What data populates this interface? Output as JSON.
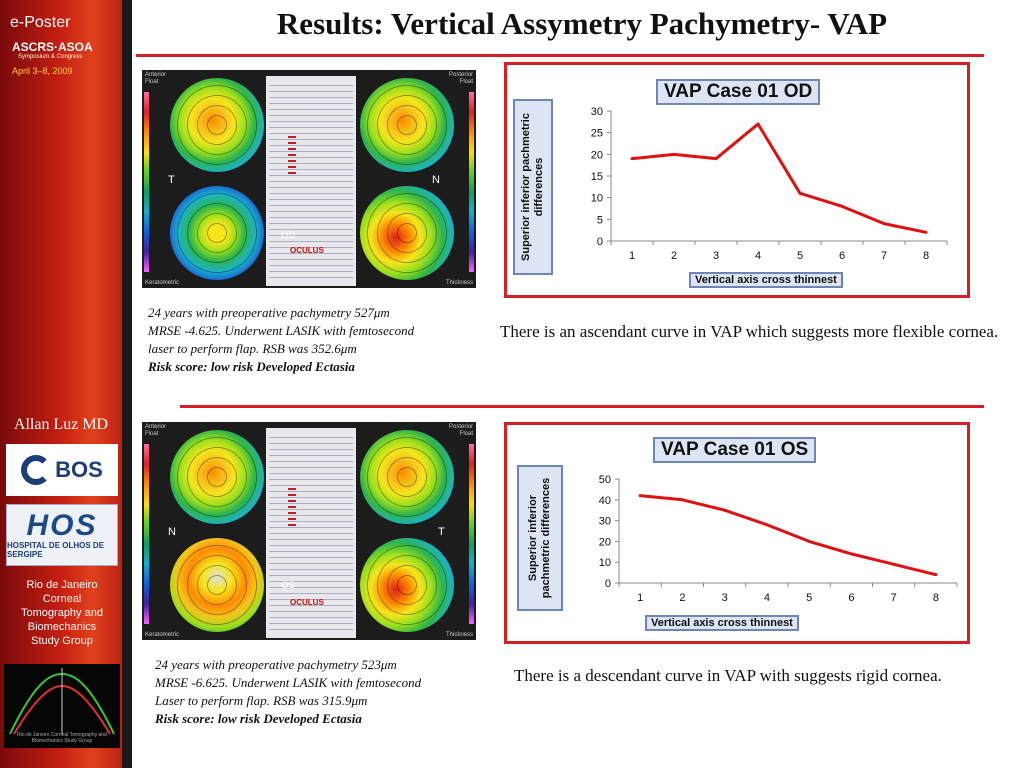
{
  "sidebar": {
    "eposter": "e-Poster",
    "ascrs": "ASCRS·ASOA",
    "ascrs_sub": "Symposium & Congress",
    "date": "April 3–8, 2009",
    "author": "Allan Luz MD",
    "bos_logo": "BOS",
    "hos_logo": "HOS",
    "hos_sub": "HOSPITAL DE OLHOS DE SERGIPE",
    "group_lines": [
      "Rio de Janeiro",
      "Corneal",
      "Tomography and",
      "Biomechanics",
      "Study Group"
    ],
    "group_logo_caption": "Rio de Janeiro Corneal Tomography and Biomechanics Study Group"
  },
  "title": "Results: Vertical Assymetry Pachymetry- VAP",
  "cases": [
    {
      "topo": {
        "anterior": "Anterior",
        "float": "Float",
        "posterior": "Posterior",
        "float_r": "Float",
        "left_dir": "T",
        "right_dir": "N",
        "eye": "OD",
        "keratometric": "Keratometric",
        "thickness": "Thickness",
        "brand": "OCULUS"
      },
      "caption": {
        "line1": "24 years with preoperative pachymetry 527μm",
        "line2": "MRSE -4.625. Underwent LASIK with femtosecond",
        "line3": "laser to perform flap. RSB was 352.6μm",
        "risk": "Risk score: low risk  Developed Ectasia"
      },
      "observation": "There is an ascendant curve in VAP which suggests more flexible cornea."
    },
    {
      "topo": {
        "anterior": "Anterior",
        "float": "Float",
        "posterior": "Posterior",
        "float_r": "Float",
        "left_dir": "N",
        "right_dir": "T",
        "eye": "OS",
        "keratometric": "Keratometric",
        "thickness": "Thickness",
        "brand": "OCULUS"
      },
      "caption": {
        "line1": "24 years with preoperative pachymetry 523μm",
        "line2": "MRSE -6.625. Underwent LASIK with femtosecond",
        "line3": "Laser to perform flap. RSB was 315.9μm",
        "risk": "Risk score: low risk  Developed Ectasia"
      },
      "observation": "There is a descendant curve in VAP with suggests rigid cornea."
    }
  ],
  "colors": {
    "accent_red": "#d42020",
    "line_red": "#e01010",
    "label_fill": "#dde4f3",
    "label_border": "#6e85b8"
  },
  "chart_data": [
    {
      "type": "line",
      "title": "VAP Case 01 OD",
      "xlabel": "Vertical axis cross thinnest",
      "ylabel": "Superior inferior pachmetric differences",
      "x": [
        1,
        2,
        3,
        4,
        5,
        6,
        7,
        8
      ],
      "series": [
        {
          "values": [
            19,
            20,
            19,
            27,
            11,
            8,
            4,
            2
          ]
        }
      ],
      "ylim": [
        0,
        30
      ],
      "yticks": [
        0,
        5,
        10,
        15,
        20,
        25,
        30
      ],
      "grid": false,
      "legend": "none"
    },
    {
      "type": "line",
      "title": "VAP Case 01 OS",
      "xlabel": "Vertical axis cross thinnest",
      "ylabel": "Superior inferior pachmetric differences",
      "x": [
        1,
        2,
        3,
        4,
        5,
        6,
        7,
        8
      ],
      "series": [
        {
          "values": [
            42,
            40,
            35,
            28,
            20,
            14,
            9,
            4
          ]
        }
      ],
      "ylim": [
        0,
        50
      ],
      "yticks": [
        0,
        10,
        20,
        30,
        40,
        50
      ],
      "grid": false,
      "legend": "none"
    }
  ]
}
